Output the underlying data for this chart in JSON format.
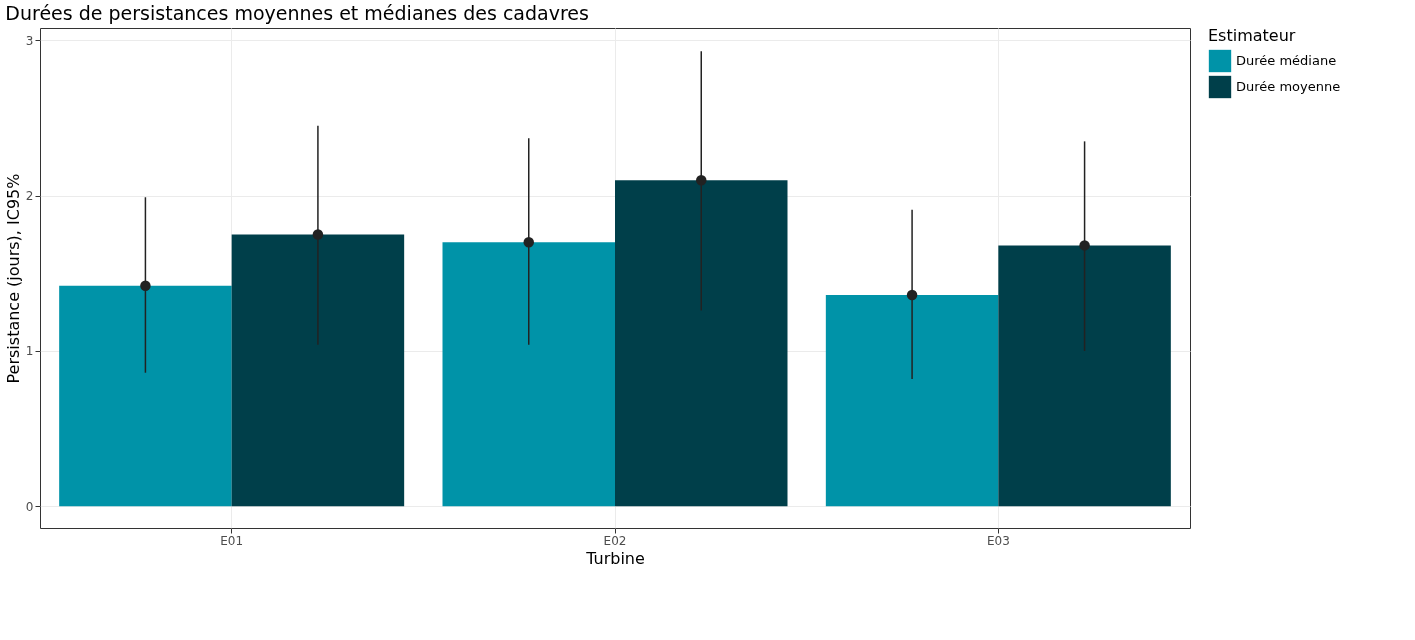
{
  "chart_data": {
    "type": "bar",
    "title": "Durées de persistances moyennes et médianes des cadavres",
    "xlabel": "Turbine",
    "ylabel": "Persistance (jours), IC95%",
    "legend_title": "Estimateur",
    "categories": [
      "E01",
      "E02",
      "E03"
    ],
    "series": [
      {
        "name": "Durée médiane",
        "color": "#0093a8",
        "values": [
          1.42,
          1.7,
          1.36
        ],
        "errors": [
          [
            0.86,
            1.99
          ],
          [
            1.04,
            2.37
          ],
          [
            0.82,
            1.91
          ]
        ]
      },
      {
        "name": "Durée moyenne",
        "color": "#003f4a",
        "values": [
          1.75,
          2.1,
          1.68
        ],
        "errors": [
          [
            1.04,
            2.45
          ],
          [
            1.26,
            2.93
          ],
          [
            1.0,
            2.35
          ]
        ]
      },
      {
        "type": "scatter",
        "color": "#222222",
        "values": [
          1.42,
          1.7,
          1.36
        ]
      },
      {
        "type": "scatter",
        "color": "#222222",
        "values": [
          1.75,
          2.1,
          1.68
        ]
      }
    ],
    "marker": "circle",
    "ylim": [
      -0.14,
      3.08
    ],
    "yticks": [
      {
        "value": 0,
        "label": "0"
      },
      {
        "value": 1,
        "label": "1"
      },
      {
        "value": 2,
        "label": "2"
      },
      {
        "value": 3,
        "label": "3"
      }
    ],
    "grid": true,
    "legend": "right"
  }
}
